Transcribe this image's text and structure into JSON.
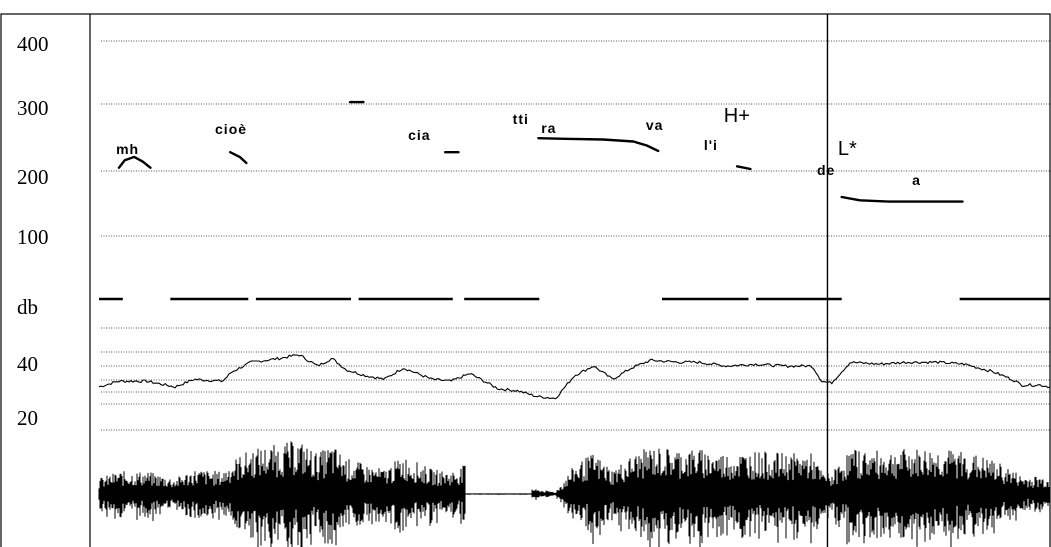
{
  "figure": {
    "pitch_panel": {
      "axis_label": "",
      "ticks": [
        "400",
        "300",
        "200",
        "100"
      ]
    },
    "intensity_panel": {
      "axis_label": "db",
      "ticks": [
        "40",
        "20"
      ]
    }
  },
  "chart_data": {
    "type": "line",
    "title": "",
    "xlabel": "",
    "ylabel": "",
    "x_unit": "relative time (0 to 1)",
    "grid": true,
    "pitch": {
      "ylim": [
        0,
        400
      ],
      "ticks": [
        400,
        300,
        200,
        100
      ],
      "segments": [
        {
          "label": "mh",
          "points": [
            [
              0.021,
              205
            ],
            [
              0.027,
              216
            ],
            [
              0.037,
              221
            ],
            [
              0.046,
              214
            ],
            [
              0.054,
              205
            ]
          ]
        },
        {
          "label": "cioè",
          "points": [
            [
              0.138,
              228
            ],
            [
              0.148,
              221
            ],
            [
              0.155,
              212
            ]
          ]
        },
        {
          "label": "",
          "points": [
            [
              0.264,
              303
            ],
            [
              0.278,
              303
            ]
          ]
        },
        {
          "label": "cia",
          "points": [
            [
              0.364,
              228
            ],
            [
              0.378,
              228
            ]
          ]
        },
        {
          "label": "tti ra",
          "points": [
            [
              0.462,
              249
            ],
            [
              0.49,
              248
            ],
            [
              0.53,
              247
            ],
            [
              0.562,
              244
            ],
            [
              0.576,
              238
            ],
            [
              0.588,
              230
            ]
          ]
        },
        {
          "label": "va",
          "points": []
        },
        {
          "label": "l'i",
          "points": [
            [
              0.671,
              207
            ],
            [
              0.685,
              203
            ]
          ]
        },
        {
          "label": "de",
          "points": []
        },
        {
          "label": "a",
          "points": [
            [
              0.781,
              160
            ],
            [
              0.8,
              155
            ],
            [
              0.83,
              153
            ],
            [
              0.87,
              153
            ],
            [
              0.908,
              153
            ]
          ]
        }
      ]
    },
    "intensity": {
      "axis_label": "db",
      "ticks": [
        40,
        20
      ],
      "ylim": [
        10,
        60
      ],
      "x": [
        0.0,
        0.02,
        0.05,
        0.08,
        0.1,
        0.13,
        0.14,
        0.16,
        0.19,
        0.21,
        0.23,
        0.245,
        0.26,
        0.28,
        0.3,
        0.32,
        0.35,
        0.37,
        0.39,
        0.42,
        0.44,
        0.46,
        0.48,
        0.5,
        0.52,
        0.54,
        0.56,
        0.58,
        0.61,
        0.63,
        0.66,
        0.69,
        0.72,
        0.75,
        0.76,
        0.77,
        0.79,
        0.82,
        0.85,
        0.88,
        0.91,
        0.94,
        0.96,
        0.97,
        0.99,
        1.0
      ],
      "y": [
        29,
        32,
        32,
        29,
        33,
        32,
        37,
        42,
        44,
        46,
        40,
        44,
        38,
        35,
        33,
        39,
        33,
        32,
        36,
        28,
        27,
        24,
        23,
        35,
        40,
        33,
        39,
        43,
        42,
        42,
        40,
        41,
        40,
        40,
        32,
        31,
        42,
        41,
        42,
        42,
        41,
        37,
        33,
        30,
        30,
        29
      ]
    },
    "waveform": {
      "ylim": [
        -1,
        1
      ]
    },
    "tones": [
      {
        "label": "H+",
        "x": 0.657
      },
      {
        "label": "L*",
        "x": 0.777
      }
    ],
    "annotations": [
      {
        "text": "mh",
        "x": 0.018,
        "tier": "word"
      },
      {
        "text": "cioè",
        "x": 0.122,
        "tier": "word"
      },
      {
        "text": "cia",
        "x": 0.325,
        "tier": "word"
      },
      {
        "text": "tti",
        "x": 0.435,
        "tier": "word"
      },
      {
        "text": "ra",
        "x": 0.465,
        "tier": "word"
      },
      {
        "text": "va",
        "x": 0.575,
        "tier": "word"
      },
      {
        "text": "l'i",
        "x": 0.636,
        "tier": "word"
      },
      {
        "text": "de",
        "x": 0.755,
        "tier": "word"
      },
      {
        "text": "a",
        "x": 0.855,
        "tier": "word"
      }
    ],
    "cursor_x": 0.766
  }
}
